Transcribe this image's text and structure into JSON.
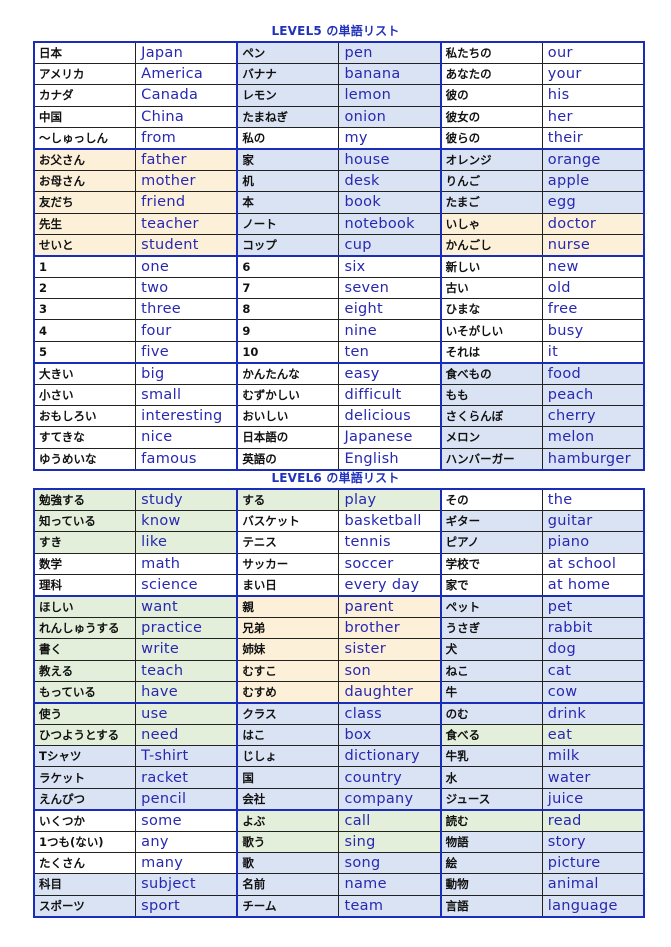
{
  "palette": {
    "w": "#ffffff",
    "b": "#dae3f3",
    "o": "#fdf0d9",
    "g": "#e3efda"
  },
  "level5": {
    "title": "LEVEL5 の単語リスト",
    "rows": [
      [
        "日本",
        "Japan",
        "w",
        "ペン",
        "pen",
        "b",
        "私たちの",
        "our",
        "w"
      ],
      [
        "アメリカ",
        "America",
        "w",
        "バナナ",
        "banana",
        "b",
        "あなたの",
        "your",
        "w"
      ],
      [
        "カナダ",
        "Canada",
        "w",
        "レモン",
        "lemon",
        "b",
        "彼の",
        "his",
        "w"
      ],
      [
        "中国",
        "China",
        "w",
        "たまねぎ",
        "onion",
        "b",
        "彼女の",
        "her",
        "w"
      ],
      [
        "～しゅっしん",
        "from",
        "w",
        "私の",
        "my",
        "w",
        "彼らの",
        "their",
        "w"
      ],
      [
        "お父さん",
        "father",
        "o",
        "家",
        "house",
        "b",
        "オレンジ",
        "orange",
        "b"
      ],
      [
        "お母さん",
        "mother",
        "o",
        "机",
        "desk",
        "b",
        "りんご",
        "apple",
        "b"
      ],
      [
        "友だち",
        "friend",
        "o",
        "本",
        "book",
        "b",
        "たまご",
        "egg",
        "b"
      ],
      [
        "先生",
        "teacher",
        "o",
        "ノート",
        "notebook",
        "b",
        "いしゃ",
        "doctor",
        "o"
      ],
      [
        "せいと",
        "student",
        "o",
        "コップ",
        "cup",
        "b",
        "かんごし",
        "nurse",
        "o"
      ],
      [
        "1",
        "one",
        "w",
        "6",
        "six",
        "w",
        "新しい",
        "new",
        "w"
      ],
      [
        "2",
        "two",
        "w",
        "7",
        "seven",
        "w",
        "古い",
        "old",
        "w"
      ],
      [
        "3",
        "three",
        "w",
        "8",
        "eight",
        "w",
        "ひまな",
        "free",
        "w"
      ],
      [
        "4",
        "four",
        "w",
        "9",
        "nine",
        "w",
        "いそがしい",
        "busy",
        "w"
      ],
      [
        "5",
        "five",
        "w",
        "10",
        "ten",
        "w",
        "それは",
        "it",
        "w"
      ],
      [
        "大きい",
        "big",
        "w",
        "かんたんな",
        "easy",
        "w",
        "食べもの",
        "food",
        "b"
      ],
      [
        "小さい",
        "small",
        "w",
        "むずかしい",
        "difficult",
        "w",
        "もも",
        "peach",
        "b"
      ],
      [
        "おもしろい",
        "interesting",
        "w",
        "おいしい",
        "delicious",
        "w",
        "さくらんぼ",
        "cherry",
        "b"
      ],
      [
        "すてきな",
        "nice",
        "w",
        "日本語の",
        "Japanese",
        "w",
        "メロン",
        "melon",
        "b"
      ],
      [
        "ゆうめいな",
        "famous",
        "w",
        "英語の",
        "English",
        "w",
        "ハンバーガー",
        "hamburger",
        "b"
      ]
    ]
  },
  "level6": {
    "title": "LEVEL6 の単語リスト",
    "rows": [
      [
        "勉強する",
        "study",
        "g",
        "する",
        "play",
        "g",
        "その",
        "the",
        "w"
      ],
      [
        "知っている",
        "know",
        "g",
        "バスケット",
        "basketball",
        "w",
        "ギター",
        "guitar",
        "b"
      ],
      [
        "すき",
        "like",
        "g",
        "テニス",
        "tennis",
        "w",
        "ピアノ",
        "piano",
        "b"
      ],
      [
        "数学",
        "math",
        "w",
        "サッカー",
        "soccer",
        "w",
        "学校で",
        "at school",
        "w"
      ],
      [
        "理科",
        "science",
        "w",
        "まい日",
        "every day",
        "w",
        "家で",
        "at home",
        "w"
      ],
      [
        "ほしい",
        "want",
        "g",
        "親",
        "parent",
        "o",
        "ペット",
        "pet",
        "b"
      ],
      [
        "れんしゅうする",
        "practice",
        "g",
        "兄弟",
        "brother",
        "o",
        "うさぎ",
        "rabbit",
        "b"
      ],
      [
        "書く",
        "write",
        "g",
        "姉妹",
        "sister",
        "o",
        "犬",
        "dog",
        "b"
      ],
      [
        "教える",
        "teach",
        "g",
        "むすこ",
        "son",
        "o",
        "ねこ",
        "cat",
        "b"
      ],
      [
        "もっている",
        "have",
        "g",
        "むすめ",
        "daughter",
        "o",
        "牛",
        "cow",
        "b"
      ],
      [
        "使う",
        "use",
        "g",
        "クラス",
        "class",
        "b",
        "のむ",
        "drink",
        "b"
      ],
      [
        "ひつようとする",
        "need",
        "g",
        "はこ",
        "box",
        "b",
        "食べる",
        "eat",
        "g"
      ],
      [
        "Tシャツ",
        "T-shirt",
        "b",
        "じしょ",
        "dictionary",
        "b",
        "牛乳",
        "milk",
        "b"
      ],
      [
        "ラケット",
        "racket",
        "b",
        "国",
        "country",
        "b",
        "水",
        "water",
        "b"
      ],
      [
        "えんぴつ",
        "pencil",
        "b",
        "会社",
        "company",
        "b",
        "ジュース",
        "juice",
        "b"
      ],
      [
        "いくつか",
        "some",
        "w",
        "よぶ",
        "call",
        "g",
        "読む",
        "read",
        "g"
      ],
      [
        "1つも(ない)",
        "any",
        "w",
        "歌う",
        "sing",
        "g",
        "物語",
        "story",
        "b"
      ],
      [
        "たくさん",
        "many",
        "w",
        "歌",
        "song",
        "b",
        "絵",
        "picture",
        "b"
      ],
      [
        "科目",
        "subject",
        "b",
        "名前",
        "name",
        "b",
        "動物",
        "animal",
        "b"
      ],
      [
        "スポーツ",
        "sport",
        "b",
        "チーム",
        "team",
        "b",
        "言語",
        "language",
        "b"
      ]
    ]
  }
}
